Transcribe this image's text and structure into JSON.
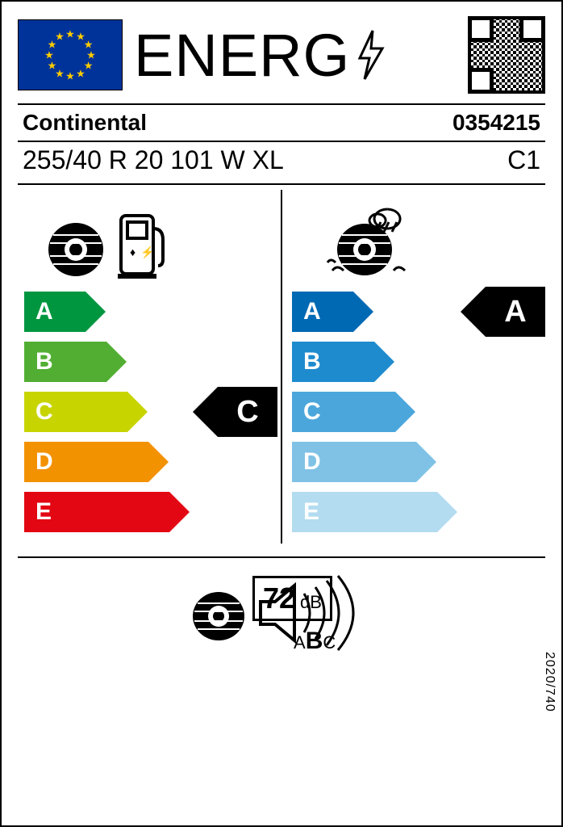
{
  "header": {
    "title": "ENERG"
  },
  "brand_row": {
    "brand": "Continental",
    "article": "0354215"
  },
  "spec_row": {
    "size": "255/40 R 20 101 W XL",
    "class": "C1"
  },
  "fuel": {
    "grades": [
      "A",
      "B",
      "C",
      "D",
      "E"
    ],
    "colors": [
      "#009640",
      "#52ae32",
      "#c8d400",
      "#f39200",
      "#e30613"
    ],
    "widths": [
      76,
      102,
      128,
      154,
      180
    ],
    "selected": "C",
    "selected_index": 2
  },
  "wet": {
    "grades": [
      "A",
      "B",
      "C",
      "D",
      "E"
    ],
    "colors": [
      "#0069b4",
      "#1e8bcf",
      "#4ba7db",
      "#7fc2e6",
      "#b3dcf0"
    ],
    "widths": [
      76,
      102,
      128,
      154,
      180
    ],
    "selected": "A",
    "selected_index": 0
  },
  "noise": {
    "value": "72",
    "unit": "dB",
    "classes": [
      "A",
      "B",
      "C"
    ],
    "selected_class": "B"
  },
  "regulation": "2020/740"
}
